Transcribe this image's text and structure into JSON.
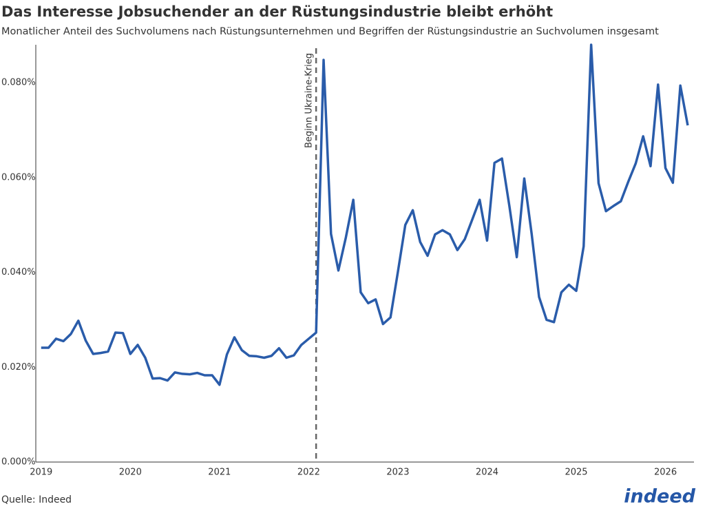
{
  "chart_data": {
    "type": "line",
    "title": "Das Interesse Jobsuchender an der Rüstungsindustrie bleibt erhöht",
    "subtitle": "Monatlicher Anteil des Suchvolumens nach Rüstungsunternehmen und Begriffen der Rüstungsindustrie an Suchvolumen insgesamt",
    "source": "Quelle: Indeed",
    "logo": "indeed",
    "color": "#2a5caa",
    "x": [
      2019,
      2019.083,
      2019.167,
      2019.25,
      2019.333,
      2019.417,
      2019.5,
      2019.583,
      2019.667,
      2019.75,
      2019.833,
      2019.917,
      2020,
      2020.083,
      2020.167,
      2020.25,
      2020.333,
      2020.417,
      2020.5,
      2020.583,
      2020.667,
      2020.75,
      2020.833,
      2020.917,
      2021,
      2021.083,
      2021.167,
      2021.25,
      2021.333,
      2021.417,
      2021.5,
      2021.583,
      2021.667,
      2021.75,
      2021.833,
      2021.917,
      2022,
      2022.083,
      2022.167,
      2022.25,
      2022.333,
      2022.417,
      2022.5,
      2022.583,
      2022.667,
      2022.75,
      2022.833,
      2022.917,
      2023,
      2023.083,
      2023.167,
      2023.25,
      2023.333,
      2023.417,
      2023.5,
      2023.583,
      2023.667,
      2023.75,
      2023.833,
      2023.917,
      2024,
      2024.083,
      2024.167,
      2024.25,
      2024.333,
      2024.417,
      2024.5,
      2024.583,
      2024.667,
      2024.75,
      2024.833,
      2024.917,
      2025,
      2025.083,
      2025.167,
      2025.25,
      2025.333,
      2025.417,
      2025.5,
      2025.583,
      2025.667,
      2025.75,
      2025.833,
      2025.917,
      2026,
      2026.083,
      2026.167,
      2026.25
    ],
    "values": [
      0.0241,
      0.0241,
      0.026,
      0.0255,
      0.027,
      0.0298,
      0.0256,
      0.0228,
      0.023,
      0.0233,
      0.0273,
      0.0272,
      0.0228,
      0.0247,
      0.022,
      0.0176,
      0.0177,
      0.0172,
      0.0189,
      0.0186,
      0.0185,
      0.0188,
      0.0183,
      0.0183,
      0.0163,
      0.0227,
      0.0263,
      0.0236,
      0.0224,
      0.0223,
      0.022,
      0.0224,
      0.024,
      0.022,
      0.0225,
      0.0247,
      0.026,
      0.0273,
      0.0848,
      0.0481,
      0.0404,
      0.0474,
      0.0553,
      0.0358,
      0.0335,
      0.0343,
      0.0291,
      0.0305,
      0.0401,
      0.05,
      0.0531,
      0.0464,
      0.0435,
      0.048,
      0.0489,
      0.048,
      0.0447,
      0.047,
      0.0511,
      0.0553,
      0.0467,
      0.0631,
      0.064,
      0.054,
      0.0432,
      0.0598,
      0.0481,
      0.0348,
      0.03,
      0.0295,
      0.0358,
      0.0374,
      0.0361,
      0.0455,
      0.088,
      0.0588,
      0.0529,
      0.054,
      0.055,
      0.0591,
      0.063,
      0.0687,
      0.0624,
      0.0796,
      0.062,
      0.0589,
      0.0794,
      0.071
    ],
    "xlim": [
      2018.94,
      2026.32
    ],
    "xticks": [
      2019,
      2020,
      2021,
      2022,
      2023,
      2024,
      2025,
      2026
    ],
    "ylim": [
      0,
      0.088
    ],
    "yticks": [
      {
        "value": 0,
        "label": "0.000%"
      },
      {
        "value": 0.02,
        "label": "0.020%"
      },
      {
        "value": 0.04,
        "label": "0.040%"
      },
      {
        "value": 0.06,
        "label": "0.060%"
      },
      {
        "value": 0.08,
        "label": "0.080%"
      }
    ],
    "grid": false,
    "annotations": [
      {
        "text": "Beginn Ukraine-Krieg",
        "x": 2022.083
      }
    ]
  }
}
